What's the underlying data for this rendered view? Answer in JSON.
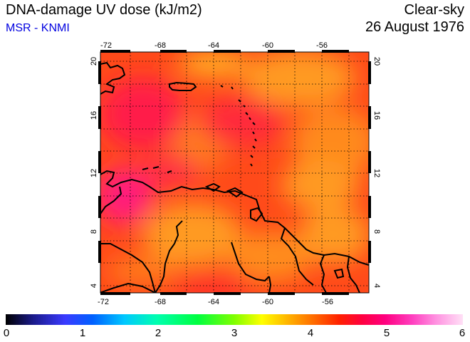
{
  "header": {
    "title": "DNA-damage UV dose (kJ/m2)",
    "credit": "MSR - KNMI",
    "sky_condition": "Clear-sky",
    "date": "26 August 1976"
  },
  "map": {
    "lon_range": [
      -72,
      -52
    ],
    "lat_range": [
      3.5,
      20.5
    ],
    "lon_ticks": [
      "-72",
      "-68",
      "-64",
      "-60",
      "-56"
    ],
    "lat_ticks": [
      "4",
      "8",
      "12",
      "16",
      "20"
    ],
    "colors": {
      "dominant": "#ff3a1a",
      "orange": "#ff8a1e",
      "red": "#ff1a3a",
      "magenta": "#ff1a80",
      "coast": "#000000"
    }
  },
  "colorbar": {
    "min": 0,
    "max": 6,
    "labels": [
      "0",
      "1",
      "2",
      "3",
      "4",
      "5",
      "6"
    ]
  }
}
